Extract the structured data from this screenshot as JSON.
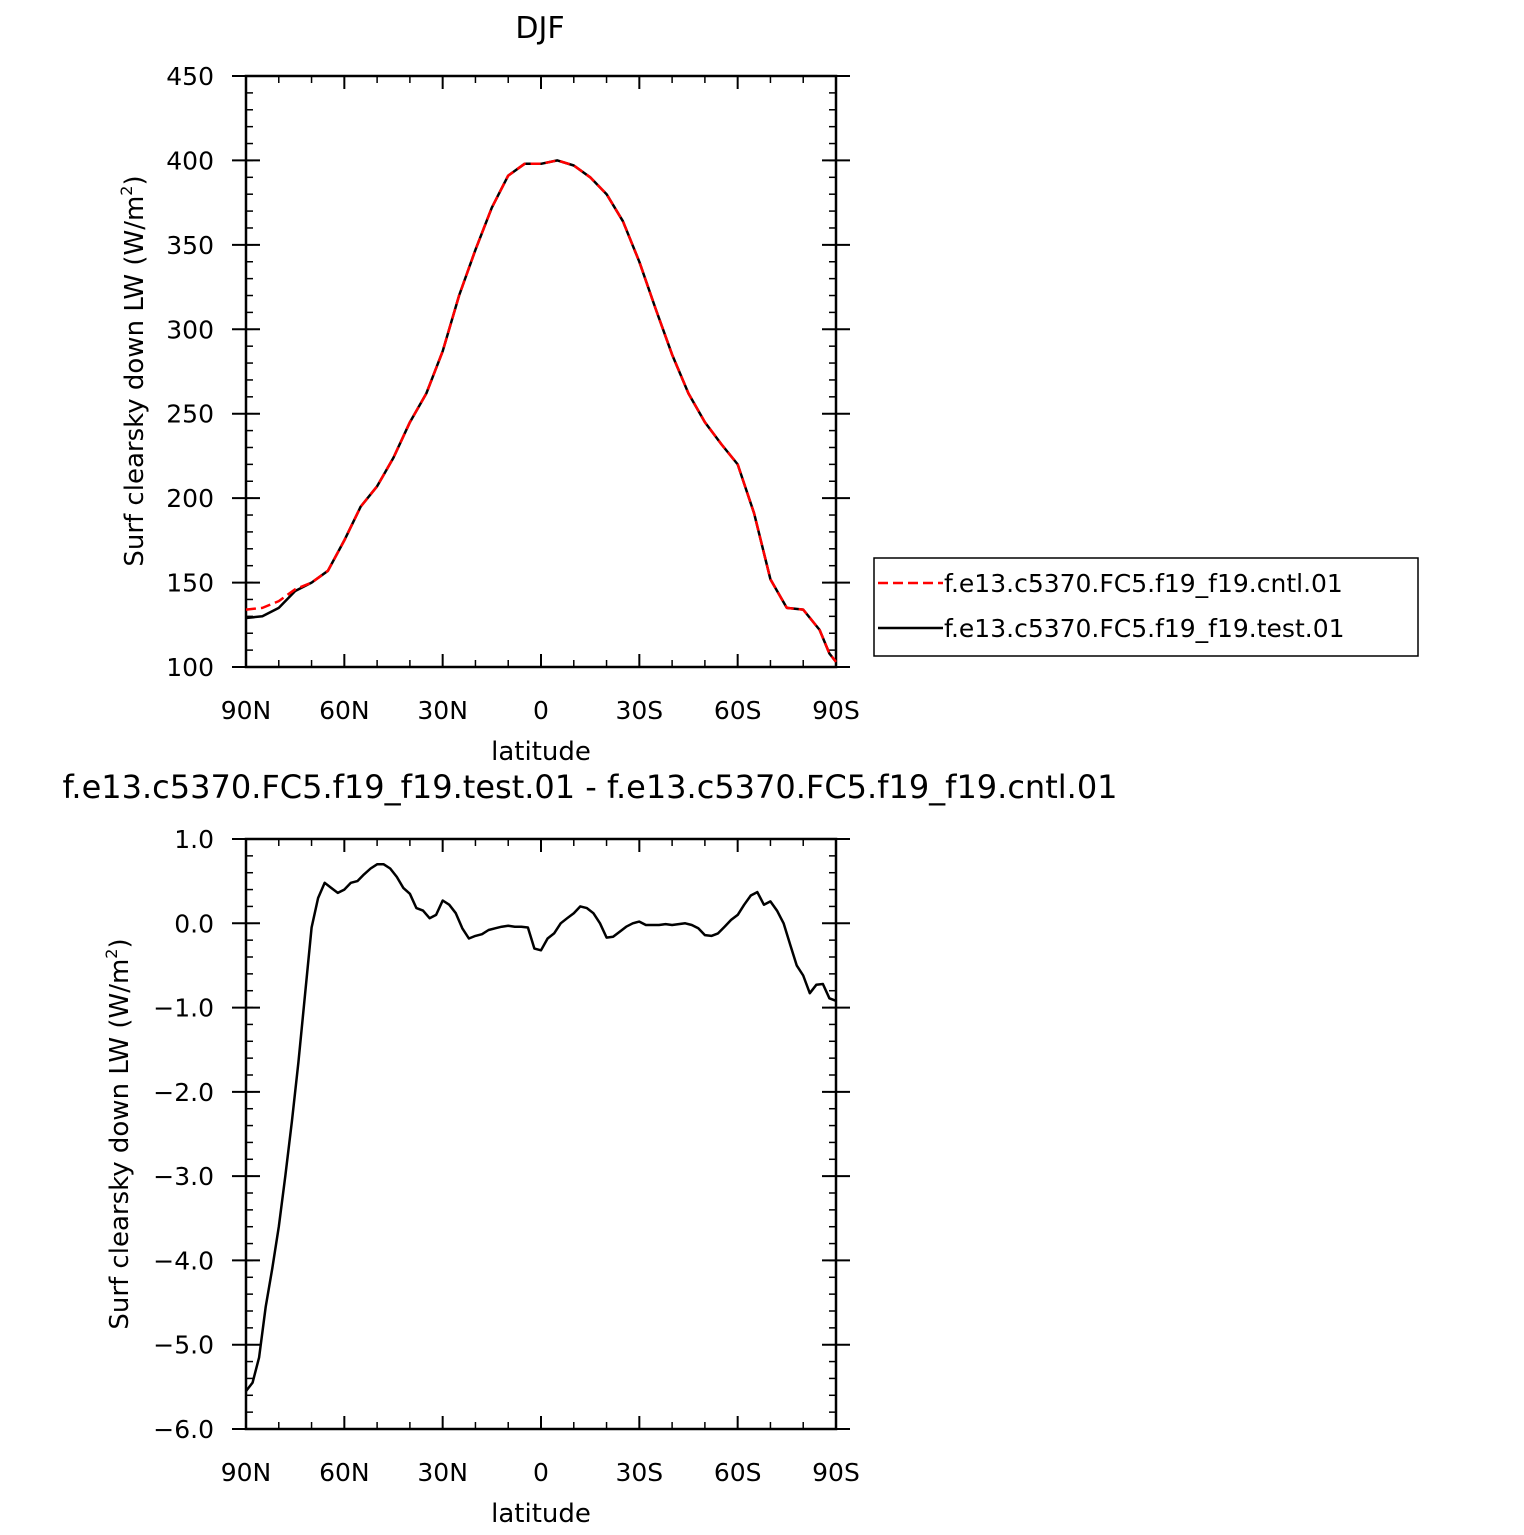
{
  "chart_data": [
    {
      "type": "line",
      "title": "DJF",
      "xlabel": "latitude",
      "ylabel_main": "Surf clearsky down LW (W/m",
      "ylabel_sup": "2",
      "ylabel_close": ")",
      "xlim": [
        90,
        -90
      ],
      "ylim": [
        100,
        450
      ],
      "xticks": [
        {
          "value": 90,
          "label": "90N"
        },
        {
          "value": 60,
          "label": "60N"
        },
        {
          "value": 30,
          "label": "30N"
        },
        {
          "value": 0,
          "label": "0"
        },
        {
          "value": -30,
          "label": "30S"
        },
        {
          "value": -60,
          "label": "60S"
        },
        {
          "value": -90,
          "label": "90S"
        }
      ],
      "yticks": [
        {
          "value": 100,
          "label": "100"
        },
        {
          "value": 150,
          "label": "150"
        },
        {
          "value": 200,
          "label": "200"
        },
        {
          "value": 250,
          "label": "250"
        },
        {
          "value": 300,
          "label": "300"
        },
        {
          "value": 350,
          "label": "350"
        },
        {
          "value": 400,
          "label": "400"
        },
        {
          "value": 450,
          "label": "450"
        }
      ],
      "legend": {
        "placement": "right"
      },
      "series": [
        {
          "name": "f.e13.c5370.FC5.f19_f19.cntl.01",
          "color": "#ff0000",
          "dash": "dashed",
          "x": [
            90,
            85,
            80,
            75,
            70,
            65,
            60,
            55,
            50,
            45,
            40,
            35,
            30,
            25,
            20,
            15,
            10,
            5,
            0,
            -5,
            -10,
            -15,
            -20,
            -25,
            -30,
            -35,
            -40,
            -45,
            -50,
            -55,
            -60,
            -65,
            -70,
            -75,
            -80,
            -85,
            -88,
            -90
          ],
          "y": [
            134,
            135,
            139,
            146,
            150,
            157,
            175,
            195,
            207,
            224,
            245,
            262,
            287,
            320,
            347,
            372,
            391,
            398,
            398,
            400,
            397,
            390,
            380,
            364,
            340,
            312,
            285,
            262,
            245,
            232,
            220,
            191,
            152,
            135,
            134,
            122,
            108,
            103
          ]
        },
        {
          "name": "f.e13.c5370.FC5.f19_f19.test.01",
          "color": "#000000",
          "dash": "solid",
          "x": [
            90,
            85,
            80,
            75,
            70,
            65,
            60,
            55,
            50,
            45,
            40,
            35,
            30,
            25,
            20,
            15,
            10,
            5,
            0,
            -5,
            -10,
            -15,
            -20,
            -25,
            -30,
            -35,
            -40,
            -45,
            -50,
            -55,
            -60,
            -65,
            -70,
            -75,
            -80,
            -85,
            -88,
            -90
          ],
          "y": [
            129,
            130,
            135,
            145,
            150,
            157,
            175,
            195,
            207,
            224,
            245,
            262,
            287,
            320,
            347,
            372,
            391,
            398,
            398,
            400,
            397,
            390,
            380,
            364,
            340,
            312,
            285,
            262,
            245,
            232,
            220,
            191,
            152,
            135,
            134,
            122,
            108,
            103
          ]
        }
      ]
    },
    {
      "type": "line",
      "title": "f.e13.c5370.FC5.f19_f19.test.01 - f.e13.c5370.FC5.f19_f19.cntl.01",
      "xlabel": "latitude",
      "ylabel_main": "Surf clearsky down LW (W/m",
      "ylabel_sup": "2",
      "ylabel_close": ")",
      "xlim": [
        90,
        -90
      ],
      "ylim": [
        -6,
        1
      ],
      "xticks": [
        {
          "value": 90,
          "label": "90N"
        },
        {
          "value": 60,
          "label": "60N"
        },
        {
          "value": 30,
          "label": "30N"
        },
        {
          "value": 0,
          "label": "0"
        },
        {
          "value": -30,
          "label": "30S"
        },
        {
          "value": -60,
          "label": "60S"
        },
        {
          "value": -90,
          "label": "90S"
        }
      ],
      "yticks": [
        {
          "value": 1,
          "label": "1.0"
        },
        {
          "value": 0,
          "label": "0.0"
        },
        {
          "value": -1,
          "label": "−1.0"
        },
        {
          "value": -2,
          "label": "−2.0"
        },
        {
          "value": -3,
          "label": "−3.0"
        },
        {
          "value": -4,
          "label": "−4.0"
        },
        {
          "value": -5,
          "label": "−5.0"
        },
        {
          "value": -6,
          "label": "−6.0"
        }
      ],
      "series": [
        {
          "color": "#000000",
          "dash": "solid",
          "x": [
            90,
            88,
            86,
            84,
            82,
            80,
            78,
            76,
            74,
            72,
            70,
            68,
            66,
            64,
            62,
            60,
            58,
            56,
            54,
            52,
            50,
            48,
            46,
            44,
            42,
            40,
            38,
            36,
            34,
            32,
            30,
            28,
            26,
            24,
            22,
            20,
            18,
            16,
            14,
            12,
            10,
            8,
            6,
            4,
            2,
            0,
            -2,
            -4,
            -6,
            -8,
            -10,
            -12,
            -14,
            -16,
            -18,
            -20,
            -22,
            -24,
            -26,
            -28,
            -30,
            -32,
            -34,
            -36,
            -38,
            -40,
            -42,
            -44,
            -46,
            -48,
            -50,
            -52,
            -54,
            -56,
            -58,
            -60,
            -62,
            -64,
            -66,
            -68,
            -70,
            -72,
            -74,
            -76,
            -78,
            -80,
            -82,
            -84,
            -86,
            -88,
            -90
          ],
          "y": [
            -5.55,
            -5.45,
            -5.15,
            -4.55,
            -4.1,
            -3.6,
            -3.0,
            -2.35,
            -1.65,
            -0.85,
            -0.05,
            0.3,
            0.48,
            0.42,
            0.36,
            0.4,
            0.48,
            0.5,
            0.58,
            0.65,
            0.7,
            0.7,
            0.65,
            0.55,
            0.42,
            0.35,
            0.18,
            0.15,
            0.06,
            0.1,
            0.27,
            0.22,
            0.12,
            -0.06,
            -0.18,
            -0.15,
            -0.13,
            -0.08,
            -0.06,
            -0.04,
            -0.03,
            -0.04,
            -0.04,
            -0.05,
            -0.3,
            -0.32,
            -0.18,
            -0.12,
            0.0,
            0.06,
            0.12,
            0.2,
            0.18,
            0.12,
            0.0,
            -0.17,
            -0.16,
            -0.1,
            -0.04,
            0.0,
            0.02,
            -0.02,
            -0.02,
            -0.02,
            -0.01,
            -0.02,
            -0.01,
            0.0,
            -0.02,
            -0.06,
            -0.14,
            -0.15,
            -0.12,
            -0.04,
            0.04,
            0.1,
            0.22,
            0.33,
            0.37,
            0.22,
            0.26,
            0.15,
            0.0,
            -0.25,
            -0.5,
            -0.62,
            -0.83,
            -0.73,
            -0.72,
            -0.89,
            -0.92
          ]
        }
      ]
    }
  ]
}
